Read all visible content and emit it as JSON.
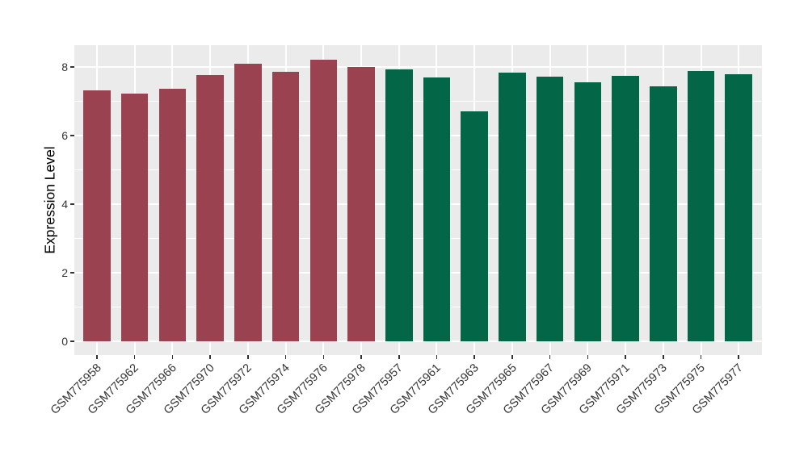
{
  "chart_data": {
    "type": "bar",
    "title": "",
    "xlabel": "",
    "ylabel": "Expression Level",
    "grid": "on",
    "legend": "none",
    "y_axis": {
      "major_ticks": [
        0,
        2,
        4,
        6,
        8
      ],
      "minor_ticks": [
        1,
        3,
        5,
        7
      ],
      "range": [
        0,
        8.64
      ]
    },
    "colors": {
      "groups": [
        "#9A4250",
        "#026647"
      ],
      "panel_bg": "#EBEBEB",
      "grid": "#FFFFFF",
      "axis_text": "#333333",
      "axis_title": "#000000",
      "tick": "#333333"
    },
    "categories": [
      "GSM775958",
      "GSM775962",
      "GSM775966",
      "GSM775970",
      "GSM775972",
      "GSM775974",
      "GSM775976",
      "GSM775978",
      "GSM775957",
      "GSM775961",
      "GSM775963",
      "GSM775965",
      "GSM775967",
      "GSM775969",
      "GSM775971",
      "GSM775973",
      "GSM775975",
      "GSM775977"
    ],
    "bars": [
      {
        "label": "GSM775958",
        "value": 7.32,
        "group": 0
      },
      {
        "label": "GSM775962",
        "value": 7.22,
        "group": 0
      },
      {
        "label": "GSM775966",
        "value": 7.36,
        "group": 0
      },
      {
        "label": "GSM775970",
        "value": 7.77,
        "group": 0
      },
      {
        "label": "GSM775972",
        "value": 8.09,
        "group": 0
      },
      {
        "label": "GSM775974",
        "value": 7.87,
        "group": 0
      },
      {
        "label": "GSM775976",
        "value": 8.22,
        "group": 0
      },
      {
        "label": "GSM775978",
        "value": 8.01,
        "group": 0
      },
      {
        "label": "GSM775957",
        "value": 7.94,
        "group": 1
      },
      {
        "label": "GSM775961",
        "value": 7.7,
        "group": 1
      },
      {
        "label": "GSM775963",
        "value": 6.7,
        "group": 1
      },
      {
        "label": "GSM775965",
        "value": 7.84,
        "group": 1
      },
      {
        "label": "GSM775967",
        "value": 7.72,
        "group": 1
      },
      {
        "label": "GSM775969",
        "value": 7.55,
        "group": 1
      },
      {
        "label": "GSM775971",
        "value": 7.73,
        "group": 1
      },
      {
        "label": "GSM775973",
        "value": 7.43,
        "group": 1
      },
      {
        "label": "GSM775975",
        "value": 7.89,
        "group": 1
      },
      {
        "label": "GSM775977",
        "value": 7.78,
        "group": 1
      }
    ]
  }
}
